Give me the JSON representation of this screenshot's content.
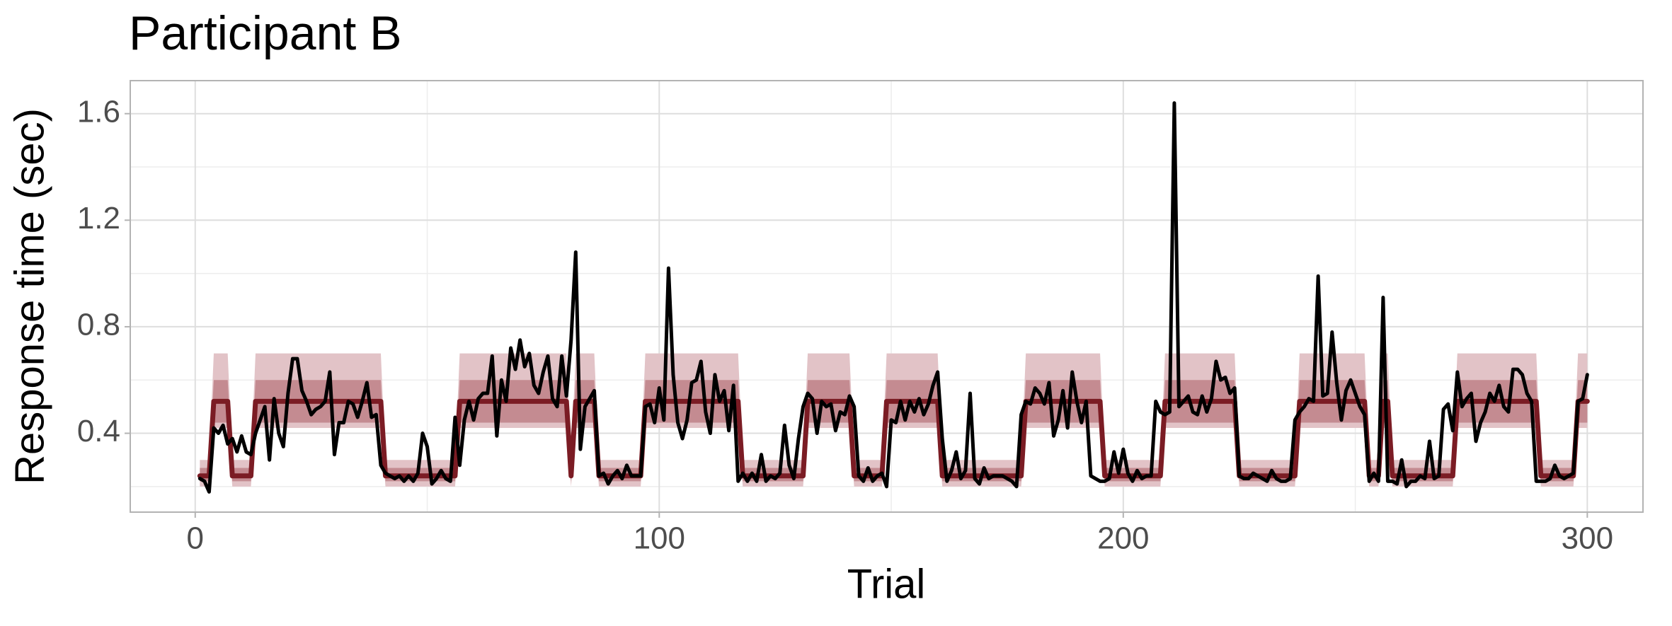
{
  "chart_data": {
    "type": "line",
    "title": "Participant B",
    "xlabel": "Trial",
    "ylabel": "Response time (sec)",
    "xlim": [
      -14,
      312
    ],
    "ylim": [
      0.104,
      1.724
    ],
    "xticks": [
      0,
      100,
      200,
      300
    ],
    "yticks": [
      0.4,
      0.8,
      1.2,
      1.6
    ],
    "grid": true,
    "bands": [
      {
        "color": "#e2c3c7",
        "x": [
          1,
          3,
          4,
          7,
          8,
          12,
          13,
          40,
          41,
          56,
          57,
          80,
          81,
          82,
          86,
          87,
          96,
          97,
          117,
          118,
          131,
          132,
          141,
          142,
          148,
          149,
          160,
          161,
          178,
          179,
          195,
          196,
          208,
          209,
          224,
          225,
          237,
          238,
          252,
          253,
          255,
          256,
          257,
          258,
          271,
          272,
          289,
          290,
          297,
          298,
          300
        ],
        "low": [
          0.2,
          0.2,
          0.42,
          0.42,
          0.2,
          0.2,
          0.42,
          0.42,
          0.2,
          0.2,
          0.42,
          0.42,
          0.2,
          0.42,
          0.42,
          0.2,
          0.2,
          0.42,
          0.42,
          0.2,
          0.2,
          0.42,
          0.42,
          0.2,
          0.2,
          0.42,
          0.42,
          0.2,
          0.2,
          0.42,
          0.42,
          0.2,
          0.2,
          0.42,
          0.42,
          0.2,
          0.2,
          0.42,
          0.42,
          0.2,
          0.2,
          0.42,
          0.42,
          0.2,
          0.2,
          0.42,
          0.42,
          0.2,
          0.2,
          0.42,
          0.42
        ],
        "high": [
          0.3,
          0.3,
          0.7,
          0.7,
          0.3,
          0.3,
          0.7,
          0.7,
          0.3,
          0.3,
          0.7,
          0.7,
          0.3,
          0.7,
          0.7,
          0.3,
          0.3,
          0.7,
          0.7,
          0.3,
          0.3,
          0.7,
          0.7,
          0.3,
          0.3,
          0.7,
          0.7,
          0.3,
          0.3,
          0.7,
          0.7,
          0.3,
          0.3,
          0.7,
          0.7,
          0.3,
          0.3,
          0.7,
          0.7,
          0.3,
          0.3,
          0.7,
          0.7,
          0.3,
          0.3,
          0.7,
          0.7,
          0.3,
          0.3,
          0.7,
          0.7
        ]
      },
      {
        "color": "#c48b91",
        "x": [
          1,
          3,
          4,
          7,
          8,
          12,
          13,
          40,
          41,
          56,
          57,
          80,
          81,
          82,
          86,
          87,
          96,
          97,
          117,
          118,
          131,
          132,
          141,
          142,
          148,
          149,
          160,
          161,
          178,
          179,
          195,
          196,
          208,
          209,
          224,
          225,
          237,
          238,
          252,
          253,
          255,
          256,
          257,
          258,
          271,
          272,
          289,
          290,
          297,
          298,
          300
        ],
        "low": [
          0.22,
          0.22,
          0.44,
          0.44,
          0.22,
          0.22,
          0.44,
          0.44,
          0.22,
          0.22,
          0.44,
          0.44,
          0.22,
          0.44,
          0.44,
          0.22,
          0.22,
          0.44,
          0.44,
          0.22,
          0.22,
          0.44,
          0.44,
          0.22,
          0.22,
          0.44,
          0.44,
          0.22,
          0.22,
          0.44,
          0.44,
          0.22,
          0.22,
          0.44,
          0.44,
          0.22,
          0.22,
          0.44,
          0.44,
          0.22,
          0.22,
          0.44,
          0.44,
          0.22,
          0.22,
          0.44,
          0.44,
          0.22,
          0.22,
          0.44,
          0.44
        ],
        "high": [
          0.27,
          0.27,
          0.6,
          0.6,
          0.27,
          0.27,
          0.6,
          0.6,
          0.27,
          0.27,
          0.6,
          0.6,
          0.27,
          0.6,
          0.6,
          0.27,
          0.27,
          0.6,
          0.6,
          0.27,
          0.27,
          0.6,
          0.6,
          0.27,
          0.27,
          0.6,
          0.6,
          0.27,
          0.27,
          0.6,
          0.6,
          0.27,
          0.27,
          0.6,
          0.6,
          0.27,
          0.27,
          0.6,
          0.6,
          0.27,
          0.27,
          0.6,
          0.6,
          0.27,
          0.27,
          0.6,
          0.6,
          0.27,
          0.27,
          0.6,
          0.6
        ]
      }
    ],
    "series": [
      {
        "color": "#7b1c24",
        "x": [
          1,
          3,
          4,
          7,
          8,
          12,
          13,
          40,
          41,
          56,
          57,
          80,
          81,
          82,
          86,
          87,
          96,
          97,
          117,
          118,
          131,
          132,
          141,
          142,
          148,
          149,
          160,
          161,
          178,
          179,
          195,
          196,
          208,
          209,
          224,
          225,
          237,
          238,
          252,
          253,
          255,
          256,
          257,
          258,
          271,
          272,
          289,
          290,
          297,
          298,
          300
        ],
        "values": [
          0.24,
          0.24,
          0.52,
          0.52,
          0.24,
          0.24,
          0.52,
          0.52,
          0.24,
          0.24,
          0.52,
          0.52,
          0.24,
          0.52,
          0.52,
          0.24,
          0.24,
          0.52,
          0.52,
          0.24,
          0.24,
          0.52,
          0.52,
          0.24,
          0.24,
          0.52,
          0.52,
          0.24,
          0.24,
          0.52,
          0.52,
          0.24,
          0.24,
          0.52,
          0.52,
          0.24,
          0.24,
          0.52,
          0.52,
          0.24,
          0.24,
          0.52,
          0.52,
          0.24,
          0.24,
          0.52,
          0.52,
          0.24,
          0.24,
          0.52,
          0.52
        ]
      },
      {
        "color": "#000000",
        "x": [
          1,
          2,
          3,
          4,
          5,
          6,
          7,
          8,
          9,
          10,
          11,
          12,
          13,
          14,
          15,
          16,
          17,
          18,
          19,
          20,
          21,
          22,
          23,
          24,
          25,
          26,
          27,
          28,
          29,
          30,
          31,
          32,
          33,
          34,
          35,
          36,
          37,
          38,
          39,
          40,
          41,
          42,
          43,
          44,
          45,
          46,
          47,
          48,
          49,
          50,
          51,
          52,
          53,
          54,
          55,
          56,
          57,
          58,
          59,
          60,
          61,
          62,
          63,
          64,
          65,
          66,
          67,
          68,
          69,
          70,
          71,
          72,
          73,
          74,
          75,
          76,
          77,
          78,
          79,
          80,
          81,
          82,
          83,
          84,
          85,
          86,
          87,
          88,
          89,
          90,
          91,
          92,
          93,
          94,
          95,
          96,
          97,
          98,
          99,
          100,
          101,
          102,
          103,
          104,
          105,
          106,
          107,
          108,
          109,
          110,
          111,
          112,
          113,
          114,
          115,
          116,
          117,
          118,
          119,
          120,
          121,
          122,
          123,
          124,
          125,
          126,
          127,
          128,
          129,
          130,
          131,
          132,
          133,
          134,
          135,
          136,
          137,
          138,
          139,
          140,
          141,
          142,
          143,
          144,
          145,
          146,
          147,
          148,
          149,
          150,
          151,
          152,
          153,
          154,
          155,
          156,
          157,
          158,
          159,
          160,
          161,
          162,
          163,
          164,
          165,
          166,
          167,
          168,
          169,
          170,
          171,
          172,
          173,
          174,
          175,
          176,
          177,
          178,
          179,
          180,
          181,
          182,
          183,
          184,
          185,
          186,
          187,
          188,
          189,
          190,
          191,
          192,
          193,
          194,
          195,
          196,
          197,
          198,
          199,
          200,
          201,
          202,
          203,
          204,
          205,
          206,
          207,
          208,
          209,
          210,
          211,
          212,
          213,
          214,
          215,
          216,
          217,
          218,
          219,
          220,
          221,
          222,
          223,
          224,
          225,
          226,
          227,
          228,
          229,
          230,
          231,
          232,
          233,
          234,
          235,
          236,
          237,
          238,
          239,
          240,
          241,
          242,
          243,
          244,
          245,
          246,
          247,
          248,
          249,
          250,
          251,
          252,
          253,
          254,
          255,
          256,
          257,
          258,
          259,
          260,
          261,
          262,
          263,
          264,
          265,
          266,
          267,
          268,
          269,
          270,
          271,
          272,
          273,
          274,
          275,
          276,
          277,
          278,
          279,
          280,
          281,
          282,
          283,
          284,
          285,
          286,
          287,
          288,
          289,
          290,
          291,
          292,
          293,
          294,
          295,
          296,
          297,
          298,
          299,
          300
        ],
        "values": [
          0.23,
          0.22,
          0.18,
          0.42,
          0.4,
          0.43,
          0.36,
          0.38,
          0.33,
          0.39,
          0.33,
          0.32,
          0.4,
          0.45,
          0.5,
          0.3,
          0.53,
          0.4,
          0.35,
          0.55,
          0.68,
          0.68,
          0.56,
          0.52,
          0.47,
          0.49,
          0.5,
          0.52,
          0.63,
          0.32,
          0.44,
          0.44,
          0.52,
          0.51,
          0.46,
          0.52,
          0.59,
          0.46,
          0.47,
          0.28,
          0.25,
          0.24,
          0.23,
          0.24,
          0.22,
          0.24,
          0.22,
          0.25,
          0.4,
          0.35,
          0.21,
          0.23,
          0.26,
          0.23,
          0.22,
          0.46,
          0.28,
          0.45,
          0.52,
          0.45,
          0.53,
          0.55,
          0.55,
          0.69,
          0.39,
          0.6,
          0.52,
          0.72,
          0.64,
          0.75,
          0.65,
          0.7,
          0.58,
          0.55,
          0.63,
          0.69,
          0.53,
          0.5,
          0.69,
          0.54,
          0.75,
          1.08,
          0.34,
          0.5,
          0.53,
          0.56,
          0.24,
          0.25,
          0.21,
          0.24,
          0.26,
          0.23,
          0.28,
          0.24,
          0.24,
          0.24,
          0.5,
          0.51,
          0.44,
          0.57,
          0.45,
          1.02,
          0.62,
          0.44,
          0.38,
          0.45,
          0.59,
          0.6,
          0.67,
          0.48,
          0.4,
          0.62,
          0.52,
          0.56,
          0.41,
          0.58,
          0.22,
          0.25,
          0.22,
          0.25,
          0.22,
          0.32,
          0.22,
          0.24,
          0.23,
          0.25,
          0.43,
          0.28,
          0.23,
          0.38,
          0.5,
          0.55,
          0.53,
          0.4,
          0.52,
          0.5,
          0.51,
          0.41,
          0.48,
          0.47,
          0.54,
          0.5,
          0.24,
          0.22,
          0.27,
          0.22,
          0.24,
          0.25,
          0.2,
          0.45,
          0.44,
          0.52,
          0.45,
          0.52,
          0.48,
          0.53,
          0.47,
          0.51,
          0.58,
          0.63,
          0.38,
          0.22,
          0.26,
          0.33,
          0.23,
          0.26,
          0.55,
          0.23,
          0.21,
          0.27,
          0.23,
          0.24,
          0.24,
          0.24,
          0.23,
          0.22,
          0.2,
          0.47,
          0.52,
          0.51,
          0.57,
          0.55,
          0.51,
          0.59,
          0.39,
          0.45,
          0.56,
          0.42,
          0.63,
          0.52,
          0.44,
          0.52,
          0.24,
          0.23,
          0.22,
          0.22,
          0.23,
          0.33,
          0.25,
          0.34,
          0.25,
          0.22,
          0.26,
          0.23,
          0.24,
          0.24,
          0.52,
          0.48,
          0.47,
          0.48,
          1.64,
          0.5,
          0.52,
          0.54,
          0.48,
          0.47,
          0.54,
          0.48,
          0.53,
          0.67,
          0.6,
          0.61,
          0.55,
          0.57,
          0.24,
          0.23,
          0.23,
          0.25,
          0.24,
          0.23,
          0.22,
          0.26,
          0.23,
          0.22,
          0.22,
          0.23,
          0.45,
          0.48,
          0.5,
          0.53,
          0.52,
          0.99,
          0.54,
          0.55,
          0.78,
          0.59,
          0.45,
          0.56,
          0.6,
          0.55,
          0.5,
          0.47,
          0.22,
          0.25,
          0.22,
          0.91,
          0.22,
          0.22,
          0.21,
          0.3,
          0.2,
          0.22,
          0.22,
          0.24,
          0.23,
          0.37,
          0.23,
          0.24,
          0.49,
          0.51,
          0.41,
          0.63,
          0.5,
          0.53,
          0.55,
          0.37,
          0.44,
          0.48,
          0.55,
          0.52,
          0.58,
          0.5,
          0.48,
          0.64,
          0.64,
          0.62,
          0.55,
          0.52,
          0.22,
          0.22,
          0.22,
          0.23,
          0.28,
          0.24,
          0.23,
          0.24,
          0.25,
          0.52,
          0.53,
          0.62
        ]
      }
    ]
  }
}
